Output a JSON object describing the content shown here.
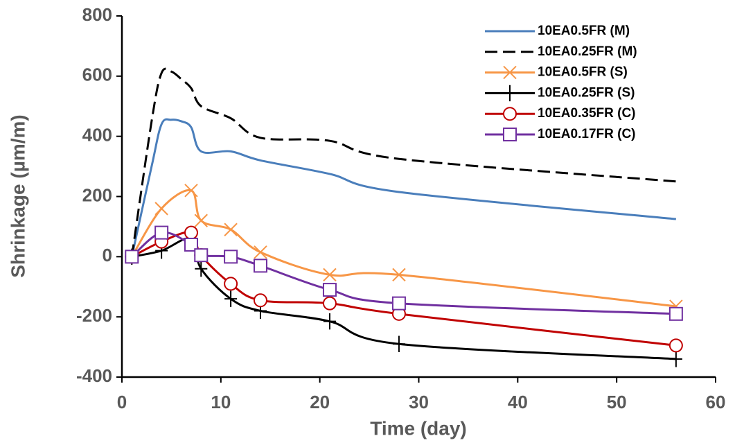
{
  "chart_data": {
    "type": "line",
    "xlabel": "Time (day)",
    "ylabel": "Shrinkage (µm/m)",
    "xlim": [
      0,
      60
    ],
    "xticks": [
      0,
      10,
      20,
      30,
      40,
      50,
      60
    ],
    "ylim": [
      -400,
      800
    ],
    "yticks": [
      -400,
      -200,
      0,
      200,
      400,
      600,
      800
    ],
    "series": [
      {
        "name": "10EA0.5FR (M)",
        "color": "#4a7ebb",
        "line_style": "solid",
        "marker": "none",
        "x": [
          1,
          3,
          4,
          5,
          6,
          7,
          8,
          11,
          14,
          21,
          28,
          56
        ],
        "values": [
          0,
          300,
          440,
          455,
          450,
          430,
          350,
          350,
          320,
          275,
          215,
          125
        ]
      },
      {
        "name": "10EA0.25FR (M)",
        "color": "#000000",
        "line_style": "dashed",
        "marker": "none",
        "x": [
          1,
          3,
          4,
          5,
          6,
          7,
          8,
          11,
          14,
          21,
          28,
          56
        ],
        "values": [
          0,
          450,
          610,
          615,
          590,
          560,
          500,
          460,
          395,
          385,
          325,
          250
        ]
      },
      {
        "name": "10EA0.5FR (S)",
        "color": "#f79646",
        "line_style": "solid",
        "marker": "x",
        "x": [
          1,
          4,
          7,
          8,
          11,
          14,
          21,
          28,
          56
        ],
        "values": [
          0,
          160,
          220,
          120,
          90,
          15,
          -60,
          -60,
          -165
        ]
      },
      {
        "name": "10EA0.25FR (S)",
        "color": "#000000",
        "line_style": "solid",
        "marker": "plus",
        "x": [
          1,
          4,
          7,
          8,
          11,
          14,
          21,
          28,
          56
        ],
        "values": [
          0,
          20,
          60,
          -40,
          -140,
          -180,
          -215,
          -290,
          -340
        ]
      },
      {
        "name": "10EA0.35FR (C)",
        "color": "#c00000",
        "line_style": "solid",
        "marker": "circle",
        "x": [
          1,
          4,
          7,
          8,
          11,
          14,
          21,
          28,
          56
        ],
        "values": [
          0,
          50,
          80,
          5,
          -90,
          -145,
          -155,
          -190,
          -295
        ]
      },
      {
        "name": "10EA0.17FR (C)",
        "color": "#7030a0",
        "line_style": "solid",
        "marker": "square",
        "x": [
          1,
          4,
          7,
          8,
          11,
          14,
          21,
          28,
          56
        ],
        "values": [
          0,
          80,
          40,
          5,
          0,
          -30,
          -110,
          -155,
          -190
        ]
      }
    ]
  }
}
